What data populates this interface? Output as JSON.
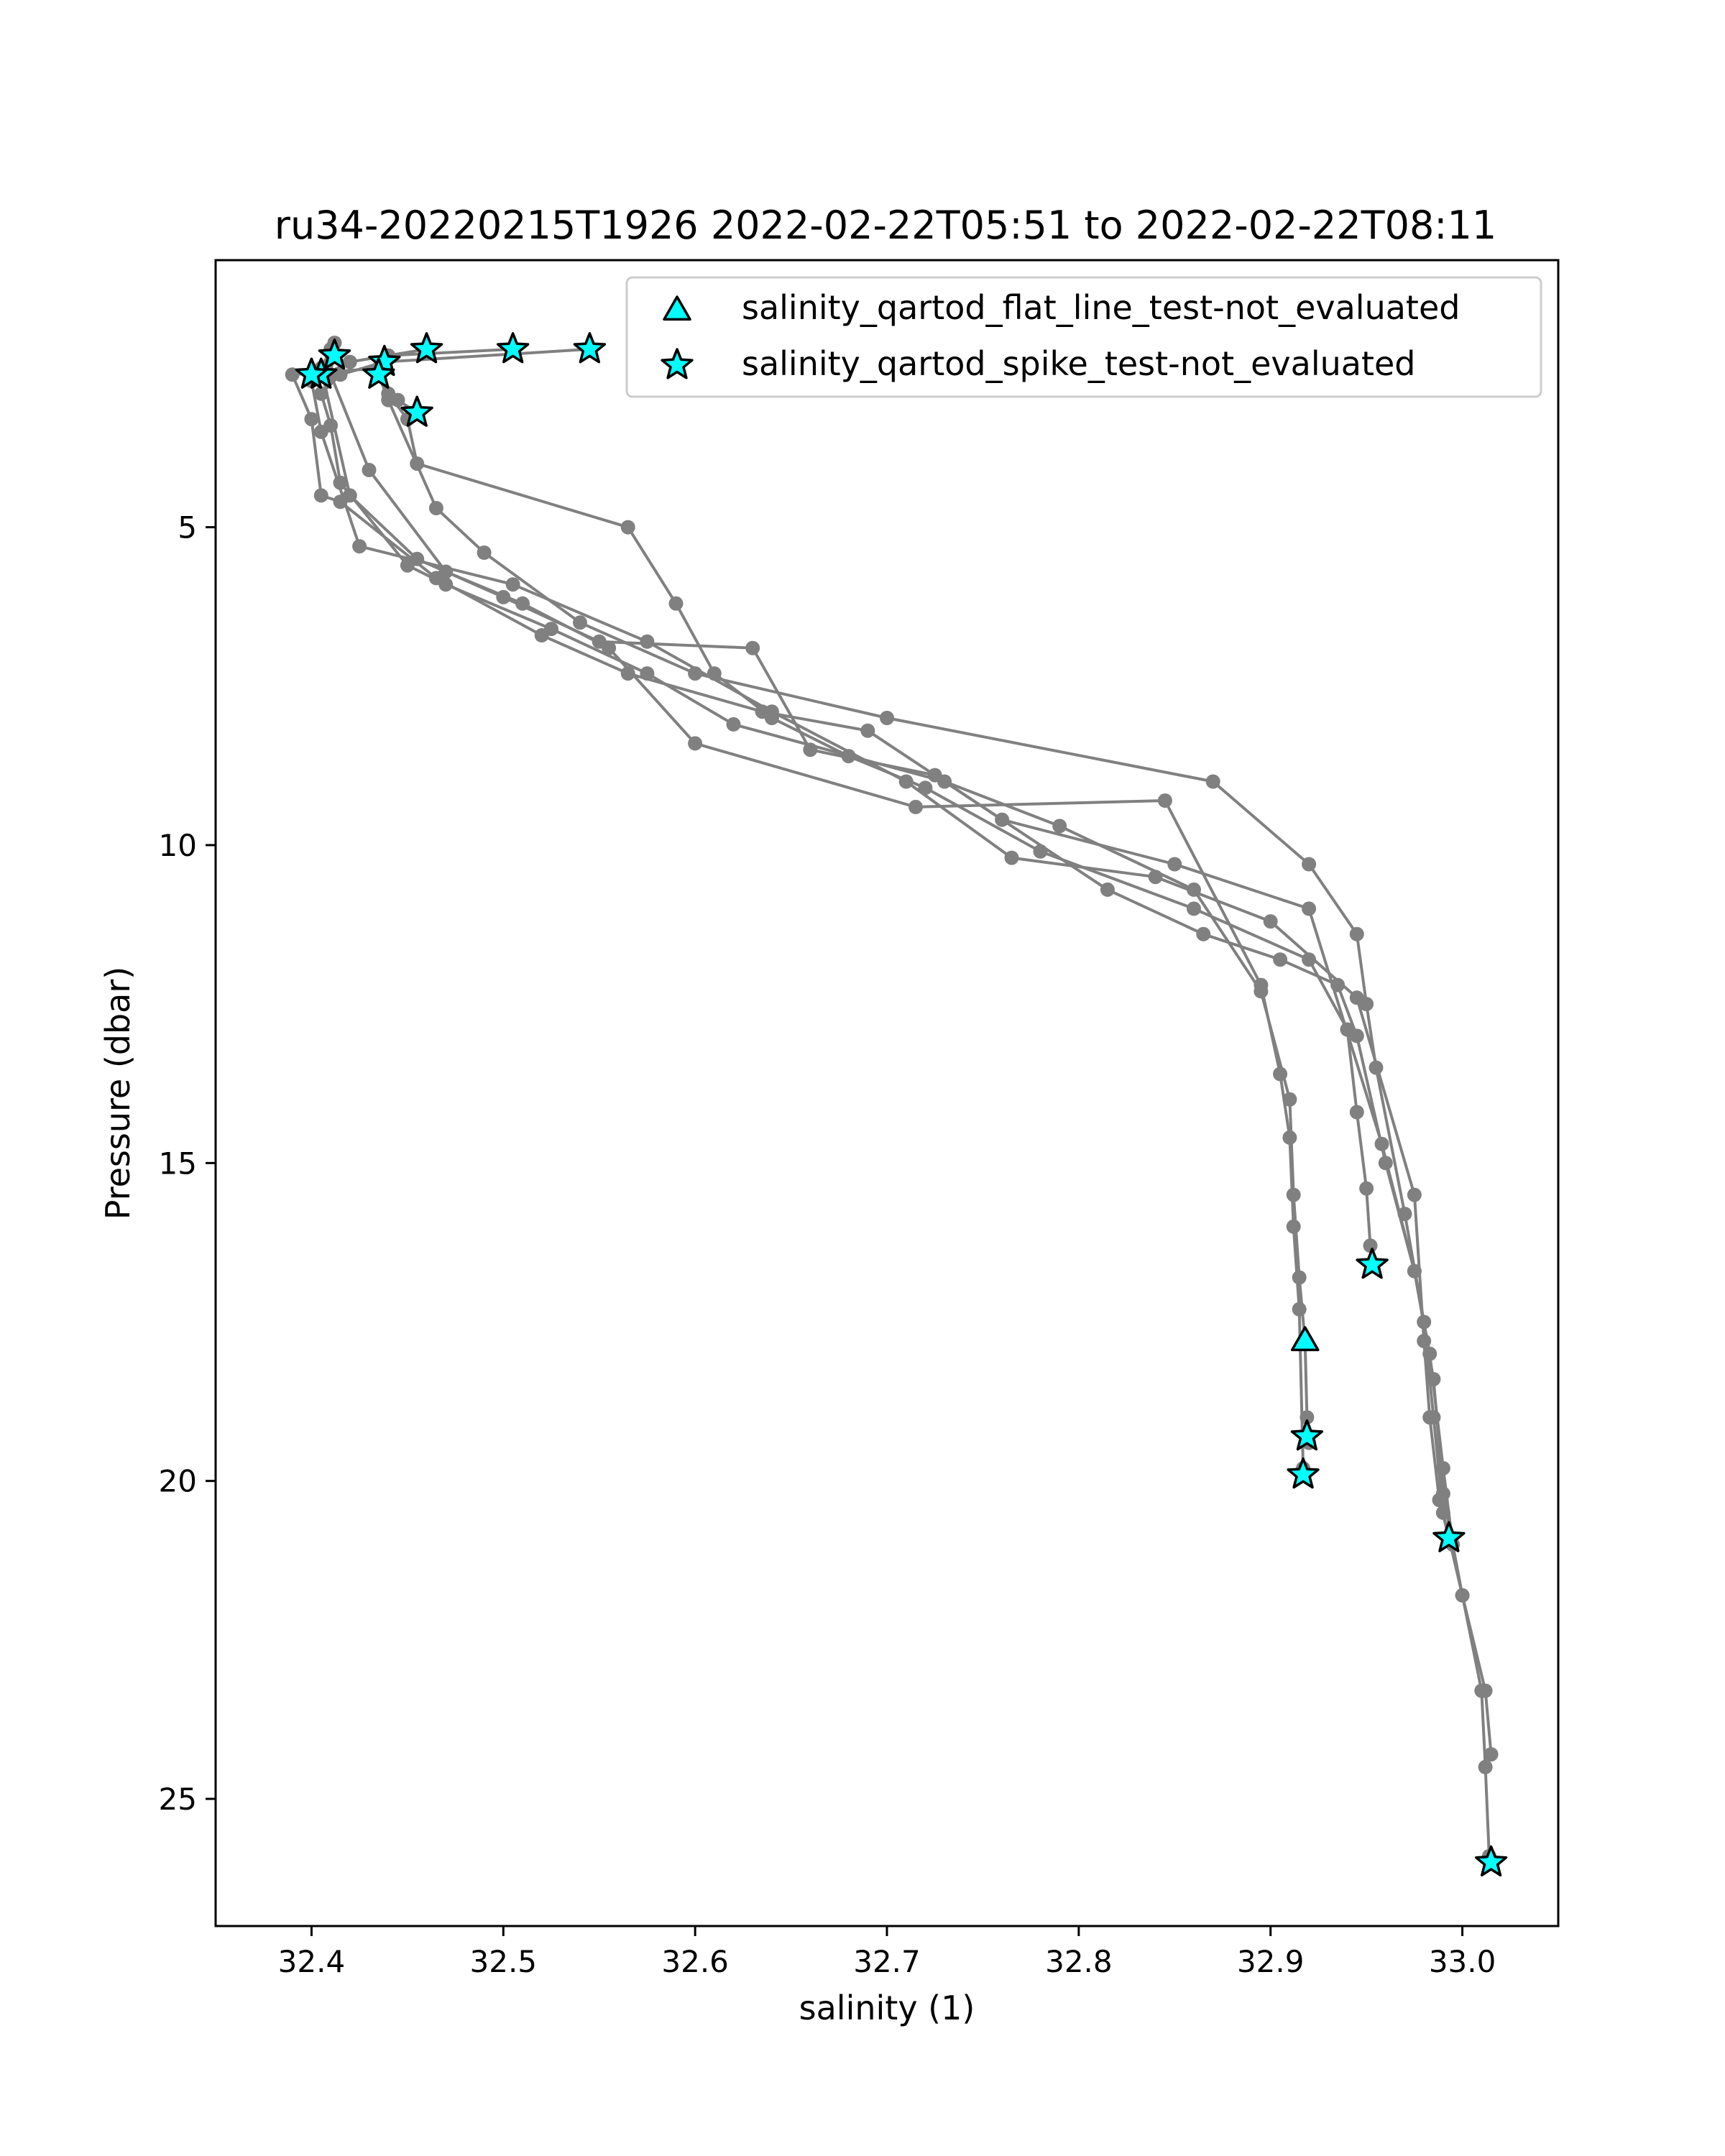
{
  "chart_data": {
    "type": "scatter",
    "title": "ru34-20220215T1926 2022-02-22T05:51 to 2022-02-22T08:11",
    "xlabel": "salinity (1)",
    "ylabel": "Pressure (dbar)",
    "xlim": [
      32.35,
      33.05
    ],
    "ylim": [
      27.0,
      0.8
    ],
    "y_inverted": true,
    "xticks": [
      32.4,
      32.5,
      32.6,
      32.7,
      32.8,
      32.9,
      33.0
    ],
    "xtick_labels": [
      "32.4",
      "32.5",
      "32.6",
      "32.7",
      "32.8",
      "32.9",
      "33.0"
    ],
    "yticks": [
      5,
      10,
      15,
      20,
      25
    ],
    "ytick_labels": [
      "5",
      "10",
      "15",
      "20",
      "25"
    ],
    "grid": false,
    "legend_position": "top-right",
    "colors": {
      "profile_line": "#808080",
      "flag_fill": "#00ffff",
      "flag_edge": "#000000"
    },
    "profiles": [
      {
        "x": [
          32.545,
          32.438,
          32.415,
          32.405,
          32.41,
          32.415,
          32.45,
          32.47,
          32.525,
          32.575,
          32.62,
          32.73,
          32.79,
          32.86,
          32.895,
          32.91,
          32.912,
          32.915,
          32.918,
          32.919,
          32.92
        ],
        "y": [
          2.2,
          2.4,
          2.6,
          2.9,
          3.4,
          4.3,
          5.6,
          5.9,
          6.6,
          7.3,
          8.1,
          9.0,
          9.7,
          10.7,
          12.3,
          14.0,
          15.5,
          16.8,
          17.8,
          19.0,
          19.4
        ]
      },
      {
        "x": [
          32.505,
          32.44,
          32.435,
          32.44,
          32.45,
          32.455,
          32.565,
          32.59,
          32.61,
          32.64,
          32.68,
          32.72,
          32.78,
          32.86,
          32.92,
          32.94,
          32.945,
          32.95,
          32.952,
          32.953
        ],
        "y": [
          2.2,
          2.3,
          2.5,
          2.9,
          3.3,
          4.0,
          5.0,
          6.2,
          7.3,
          8.0,
          8.6,
          9.1,
          10.1,
          11.0,
          11.8,
          12.9,
          14.2,
          15.4,
          16.3,
          16.6
        ]
      },
      {
        "x": [
          32.46,
          32.42,
          32.4,
          32.405,
          32.425,
          32.505,
          32.575,
          32.64,
          32.71,
          32.765,
          32.84,
          32.9,
          32.945,
          32.975,
          32.98,
          32.983,
          32.988,
          32.993
        ],
        "y": [
          2.2,
          2.4,
          2.7,
          3.5,
          5.3,
          5.9,
          6.8,
          7.9,
          9.0,
          10.2,
          10.5,
          11.2,
          12.4,
          15.5,
          17.8,
          19.0,
          20.3,
          20.9
        ]
      },
      {
        "x": [
          32.435,
          32.39,
          32.4,
          32.405,
          32.415,
          32.465,
          32.52,
          32.565,
          32.635,
          32.69,
          32.76,
          32.85,
          32.92,
          32.958,
          32.975,
          32.985,
          32.99,
          33.0,
          33.01,
          33.012,
          33.014
        ],
        "y": [
          2.5,
          2.6,
          3.3,
          4.5,
          4.6,
          5.8,
          6.7,
          7.3,
          7.9,
          8.2,
          9.6,
          10.3,
          11.0,
          14.7,
          16.7,
          18.4,
          20.2,
          21.8,
          23.3,
          24.5,
          25.9
        ]
      },
      {
        "x": [
          32.455,
          32.445,
          32.435,
          32.44,
          32.465,
          32.49,
          32.54,
          32.6,
          32.7,
          32.87,
          32.92,
          32.945,
          32.95,
          32.955,
          32.97,
          32.98,
          32.985,
          32.99,
          33.0,
          33.012,
          33.015
        ],
        "y": [
          3.2,
          3.0,
          2.6,
          3.0,
          4.7,
          5.4,
          6.5,
          7.3,
          8.0,
          9.0,
          10.3,
          11.4,
          12.5,
          13.5,
          15.8,
          17.5,
          19.0,
          20.5,
          21.8,
          23.3,
          24.3
        ]
      },
      {
        "x": [
          32.41,
          32.405,
          32.42,
          32.455,
          32.5,
          32.55,
          32.63,
          32.66,
          32.725,
          32.815,
          32.865,
          32.905,
          32.935,
          32.945,
          32.96,
          32.975,
          32.983,
          32.99,
          32.995
        ],
        "y": [
          2.2,
          2.5,
          4.5,
          5.5,
          6.1,
          6.8,
          6.9,
          8.5,
          8.9,
          10.7,
          11.4,
          11.8,
          12.2,
          13.0,
          15.0,
          16.7,
          18.0,
          19.8,
          21.0
        ]
      },
      {
        "x": [
          32.412,
          32.41,
          32.43,
          32.47,
          32.51,
          32.555,
          32.6,
          32.715,
          32.845,
          32.895,
          32.905,
          32.91,
          32.912,
          32.915,
          32.917
        ],
        "y": [
          2.1,
          2.6,
          4.1,
          5.7,
          6.2,
          6.9,
          8.4,
          9.4,
          9.3,
          12.2,
          13.6,
          14.6,
          16.0,
          17.3,
          19.8
        ]
      }
    ],
    "series": [
      {
        "name": "salinity_qartod_flat_line_test-not_evaluated",
        "marker": "triangle",
        "x": [
          32.918
        ],
        "y": [
          17.8
        ]
      },
      {
        "name": "salinity_qartod_spike_test-not_evaluated",
        "marker": "star",
        "x": [
          32.545,
          32.505,
          32.46,
          32.412,
          32.438,
          32.435,
          32.405,
          32.4,
          32.455,
          32.953,
          32.919,
          32.917,
          32.993,
          33.015
        ],
        "y": [
          2.2,
          2.2,
          2.2,
          2.3,
          2.4,
          2.6,
          2.6,
          2.6,
          3.2,
          16.6,
          19.3,
          19.9,
          20.9,
          26.0
        ]
      }
    ]
  }
}
